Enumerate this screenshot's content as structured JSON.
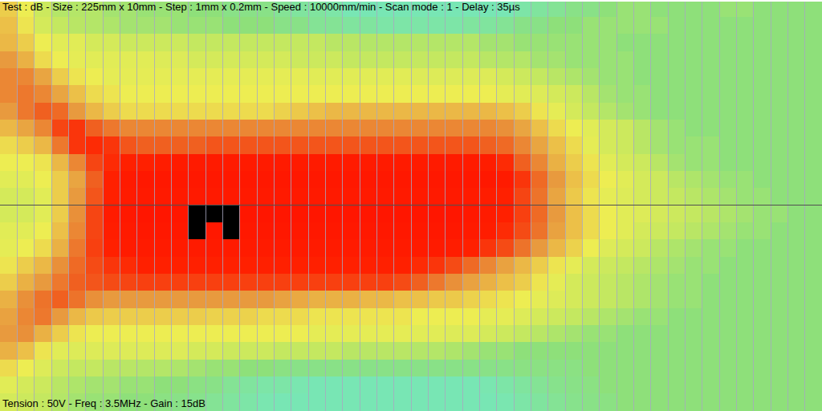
{
  "chart_data": {
    "type": "heatmap",
    "title": "Test : dB - Size : 225mm x 10mm - Step : 1mm x 0.2mm - Speed : 10000mm/min - Scan mode : 1 - Delay : 35µs",
    "subtitle": "Tension : 50V - Freq : 3.5MHz - Gain : 15dB",
    "zlim": [
      0,
      100
    ],
    "grid": true,
    "tick_labels": false,
    "values": [
      [
        55,
        48,
        40,
        35,
        35,
        35,
        32,
        32,
        30,
        30,
        30,
        28,
        28,
        25,
        25,
        25,
        22,
        20,
        20,
        18,
        15,
        15,
        15,
        15,
        15,
        15,
        15,
        15,
        15,
        15,
        18,
        20,
        22,
        25,
        25,
        28,
        30,
        30,
        28,
        28,
        28,
        28,
        30,
        30,
        28,
        28,
        28,
        28
      ],
      [
        58,
        50,
        42,
        38,
        36,
        35,
        34,
        32,
        32,
        32,
        30,
        30,
        30,
        28,
        28,
        28,
        25,
        25,
        22,
        22,
        20,
        20,
        18,
        18,
        18,
        18,
        18,
        20,
        20,
        22,
        25,
        25,
        28,
        28,
        30,
        30,
        30,
        30,
        30,
        28,
        28,
        28,
        28,
        28,
        28,
        28,
        28,
        28
      ],
      [
        60,
        55,
        48,
        45,
        45,
        42,
        42,
        40,
        40,
        40,
        40,
        38,
        38,
        38,
        38,
        38,
        38,
        38,
        38,
        36,
        36,
        35,
        35,
        35,
        35,
        35,
        35,
        35,
        32,
        32,
        30,
        30,
        30,
        30,
        30,
        30,
        28,
        28,
        28,
        28,
        28,
        28,
        28,
        28,
        28,
        28,
        28,
        28
      ],
      [
        68,
        62,
        52,
        48,
        46,
        45,
        45,
        45,
        45,
        44,
        44,
        42,
        42,
        42,
        42,
        42,
        42,
        40,
        40,
        40,
        38,
        38,
        38,
        38,
        38,
        38,
        38,
        38,
        36,
        35,
        35,
        32,
        32,
        30,
        30,
        30,
        30,
        28,
        28,
        28,
        28,
        28,
        28,
        28,
        28,
        28,
        28,
        28
      ],
      [
        72,
        72,
        65,
        55,
        50,
        48,
        46,
        46,
        46,
        46,
        46,
        46,
        46,
        46,
        46,
        46,
        46,
        46,
        45,
        45,
        45,
        45,
        45,
        45,
        44,
        44,
        44,
        44,
        44,
        42,
        40,
        38,
        36,
        34,
        32,
        30,
        30,
        28,
        28,
        28,
        28,
        28,
        28,
        28,
        28,
        28,
        28,
        28
      ],
      [
        72,
        75,
        72,
        65,
        58,
        52,
        50,
        48,
        48,
        48,
        48,
        48,
        48,
        48,
        48,
        48,
        48,
        48,
        48,
        48,
        48,
        48,
        48,
        48,
        48,
        48,
        48,
        48,
        48,
        46,
        45,
        44,
        42,
        40,
        36,
        32,
        30,
        30,
        28,
        28,
        28,
        28,
        28,
        28,
        28,
        28,
        28,
        28
      ],
      [
        68,
        75,
        80,
        78,
        68,
        60,
        55,
        52,
        52,
        52,
        52,
        52,
        52,
        52,
        52,
        52,
        54,
        56,
        58,
        60,
        60,
        60,
        60,
        60,
        60,
        60,
        60,
        60,
        60,
        58,
        55,
        50,
        46,
        42,
        38,
        35,
        32,
        30,
        28,
        28,
        28,
        28,
        28,
        28,
        28,
        28,
        28,
        28
      ],
      [
        60,
        65,
        72,
        85,
        88,
        80,
        75,
        72,
        72,
        72,
        72,
        72,
        72,
        72,
        72,
        72,
        72,
        72,
        72,
        72,
        72,
        72,
        72,
        72,
        72,
        72,
        72,
        72,
        72,
        70,
        65,
        58,
        52,
        48,
        45,
        42,
        40,
        36,
        32,
        30,
        28,
        28,
        28,
        28,
        28,
        28,
        28,
        28
      ],
      [
        52,
        55,
        60,
        75,
        88,
        90,
        88,
        82,
        80,
        80,
        80,
        80,
        82,
        82,
        82,
        82,
        82,
        82,
        82,
        82,
        82,
        82,
        82,
        82,
        82,
        82,
        82,
        82,
        80,
        78,
        72,
        65,
        58,
        52,
        46,
        42,
        40,
        36,
        32,
        30,
        30,
        30,
        28,
        28,
        28,
        28,
        28,
        28
      ],
      [
        48,
        48,
        50,
        60,
        72,
        85,
        90,
        92,
        92,
        94,
        95,
        95,
        95,
        95,
        95,
        95,
        95,
        95,
        95,
        95,
        95,
        95,
        95,
        95,
        95,
        95,
        95,
        95,
        94,
        90,
        80,
        72,
        62,
        55,
        50,
        45,
        42,
        40,
        36,
        32,
        30,
        30,
        28,
        28,
        28,
        28,
        28,
        28
      ],
      [
        45,
        45,
        48,
        55,
        65,
        80,
        92,
        96,
        97,
        97,
        97,
        97,
        97,
        97,
        97,
        97,
        97,
        97,
        97,
        97,
        97,
        97,
        97,
        97,
        97,
        97,
        97,
        97,
        97,
        95,
        88,
        78,
        68,
        58,
        52,
        48,
        45,
        42,
        40,
        36,
        34,
        32,
        30,
        30,
        28,
        28,
        28,
        28
      ],
      [
        42,
        42,
        45,
        55,
        68,
        82,
        92,
        95,
        96,
        96,
        96,
        96,
        96,
        96,
        96,
        96,
        96,
        96,
        96,
        96,
        96,
        96,
        96,
        96,
        96,
        96,
        96,
        95,
        94,
        92,
        85,
        76,
        65,
        56,
        50,
        46,
        44,
        42,
        40,
        38,
        36,
        34,
        32,
        30,
        30,
        28,
        28,
        28
      ],
      [
        42,
        42,
        45,
        55,
        70,
        85,
        95,
        97,
        98,
        98,
        98,
        100,
        100,
        100,
        98,
        98,
        98,
        98,
        98,
        98,
        98,
        98,
        98,
        98,
        98,
        98,
        98,
        97,
        95,
        92,
        86,
        78,
        68,
        58,
        52,
        48,
        45,
        44,
        42,
        40,
        38,
        36,
        34,
        32,
        30,
        30,
        28,
        28
      ],
      [
        45,
        45,
        48,
        58,
        72,
        85,
        94,
        96,
        97,
        97,
        97,
        100,
        97,
        100,
        97,
        97,
        97,
        97,
        97,
        97,
        97,
        97,
        97,
        97,
        97,
        97,
        97,
        96,
        94,
        90,
        84,
        76,
        66,
        58,
        52,
        48,
        45,
        42,
        40,
        38,
        36,
        34,
        32,
        30,
        30,
        28,
        28,
        28
      ],
      [
        46,
        48,
        52,
        62,
        75,
        86,
        92,
        95,
        95,
        95,
        95,
        95,
        95,
        95,
        95,
        95,
        95,
        95,
        95,
        95,
        95,
        95,
        95,
        95,
        95,
        95,
        94,
        92,
        88,
        84,
        76,
        68,
        60,
        54,
        48,
        44,
        42,
        40,
        36,
        34,
        32,
        30,
        30,
        28,
        28,
        28,
        28,
        28
      ],
      [
        50,
        55,
        60,
        70,
        78,
        84,
        88,
        90,
        92,
        92,
        92,
        92,
        92,
        92,
        92,
        92,
        92,
        92,
        92,
        92,
        92,
        92,
        92,
        92,
        90,
        88,
        84,
        78,
        72,
        66,
        60,
        55,
        50,
        46,
        42,
        40,
        38,
        36,
        34,
        32,
        30,
        30,
        28,
        28,
        28,
        28,
        28,
        28
      ],
      [
        55,
        62,
        68,
        75,
        80,
        82,
        84,
        85,
        86,
        86,
        86,
        86,
        86,
        86,
        86,
        86,
        86,
        86,
        86,
        86,
        86,
        86,
        86,
        84,
        80,
        75,
        70,
        66,
        62,
        58,
        55,
        50,
        46,
        42,
        40,
        38,
        36,
        34,
        32,
        30,
        30,
        28,
        28,
        28,
        28,
        28,
        28,
        28
      ],
      [
        62,
        70,
        76,
        80,
        76,
        70,
        68,
        68,
        68,
        68,
        68,
        68,
        68,
        68,
        68,
        68,
        66,
        64,
        62,
        62,
        62,
        60,
        60,
        58,
        58,
        56,
        56,
        54,
        52,
        50,
        48,
        46,
        44,
        42,
        40,
        38,
        36,
        34,
        32,
        30,
        30,
        28,
        28,
        28,
        28,
        28,
        28,
        28
      ],
      [
        66,
        72,
        75,
        68,
        60,
        56,
        55,
        55,
        55,
        55,
        55,
        55,
        54,
        54,
        54,
        52,
        52,
        52,
        50,
        50,
        50,
        50,
        50,
        50,
        48,
        48,
        48,
        48,
        46,
        46,
        44,
        42,
        40,
        38,
        36,
        34,
        32,
        30,
        30,
        28,
        28,
        28,
        28,
        28,
        28,
        28,
        28,
        28
      ],
      [
        68,
        70,
        62,
        55,
        50,
        48,
        48,
        48,
        48,
        48,
        48,
        48,
        48,
        48,
        48,
        48,
        48,
        48,
        46,
        46,
        46,
        46,
        46,
        46,
        45,
        45,
        44,
        44,
        42,
        40,
        38,
        36,
        34,
        32,
        30,
        30,
        28,
        28,
        28,
        28,
        28,
        28,
        28,
        28,
        28,
        28,
        28,
        28
      ],
      [
        62,
        58,
        50,
        45,
        44,
        44,
        44,
        44,
        44,
        44,
        44,
        42,
        42,
        40,
        40,
        40,
        38,
        38,
        38,
        38,
        36,
        36,
        36,
        36,
        35,
        35,
        34,
        32,
        30,
        30,
        28,
        28,
        28,
        28,
        28,
        28,
        28,
        28,
        28,
        28,
        28,
        28,
        28,
        28,
        28,
        28,
        28,
        28
      ],
      [
        52,
        48,
        44,
        40,
        38,
        38,
        36,
        36,
        35,
        35,
        34,
        32,
        30,
        30,
        28,
        28,
        26,
        25,
        25,
        25,
        25,
        25,
        25,
        25,
        25,
        25,
        25,
        25,
        25,
        25,
        26,
        26,
        26,
        26,
        28,
        28,
        28,
        28,
        28,
        28,
        28,
        28,
        28,
        28,
        28,
        28,
        28,
        28
      ],
      [
        45,
        42,
        40,
        36,
        34,
        32,
        32,
        30,
        30,
        28,
        28,
        26,
        25,
        22,
        20,
        18,
        18,
        16,
        15,
        15,
        15,
        15,
        15,
        15,
        15,
        15,
        15,
        15,
        16,
        18,
        20,
        22,
        24,
        25,
        26,
        28,
        28,
        28,
        28,
        28,
        28,
        28,
        28,
        28,
        28,
        28,
        28,
        28
      ],
      [
        42,
        40,
        38,
        35,
        32,
        30,
        30,
        28,
        28,
        26,
        25,
        24,
        22,
        20,
        18,
        16,
        15,
        15,
        15,
        15,
        15,
        15,
        15,
        15,
        15,
        15,
        15,
        15,
        15,
        16,
        18,
        20,
        22,
        24,
        25,
        26,
        28,
        28,
        28,
        28,
        28,
        28,
        28,
        28,
        28,
        28,
        28,
        28
      ]
    ]
  }
}
